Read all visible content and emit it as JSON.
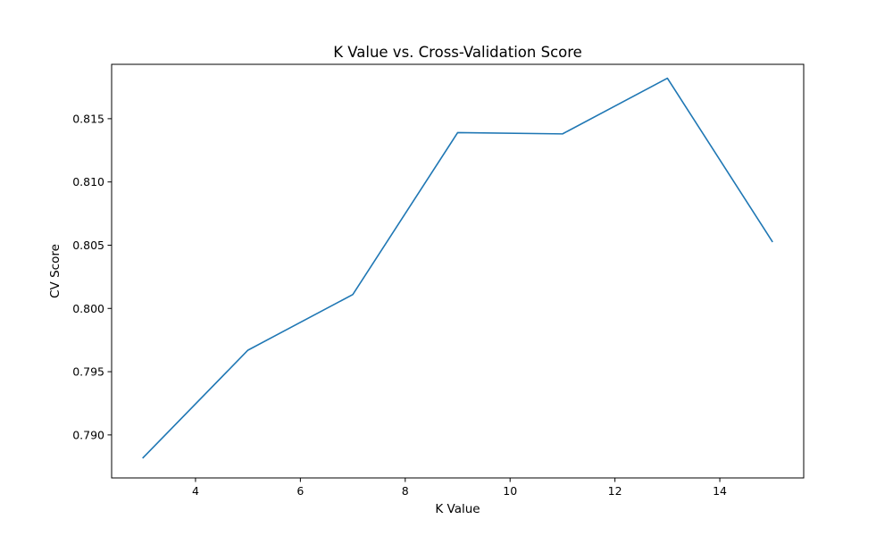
{
  "chart_data": {
    "type": "line",
    "title": "K Value vs. Cross-Validation Score",
    "xlabel": "K Value",
    "ylabel": "CV Score",
    "x": [
      3,
      5,
      7,
      9,
      11,
      13,
      15
    ],
    "series": [
      {
        "values": [
          0.7882,
          0.7967,
          0.8011,
          0.8139,
          0.8138,
          0.8182,
          0.8053
        ],
        "color": "#1f77b4"
      }
    ],
    "xlim": [
      2.4,
      15.6
    ],
    "ylim": [
      0.7866,
      0.8193
    ],
    "xticks": [
      4,
      6,
      8,
      10,
      12,
      14
    ],
    "yticks": [
      0.79,
      0.795,
      0.8,
      0.805,
      0.81,
      0.815
    ],
    "grid": false,
    "legend": false
  }
}
